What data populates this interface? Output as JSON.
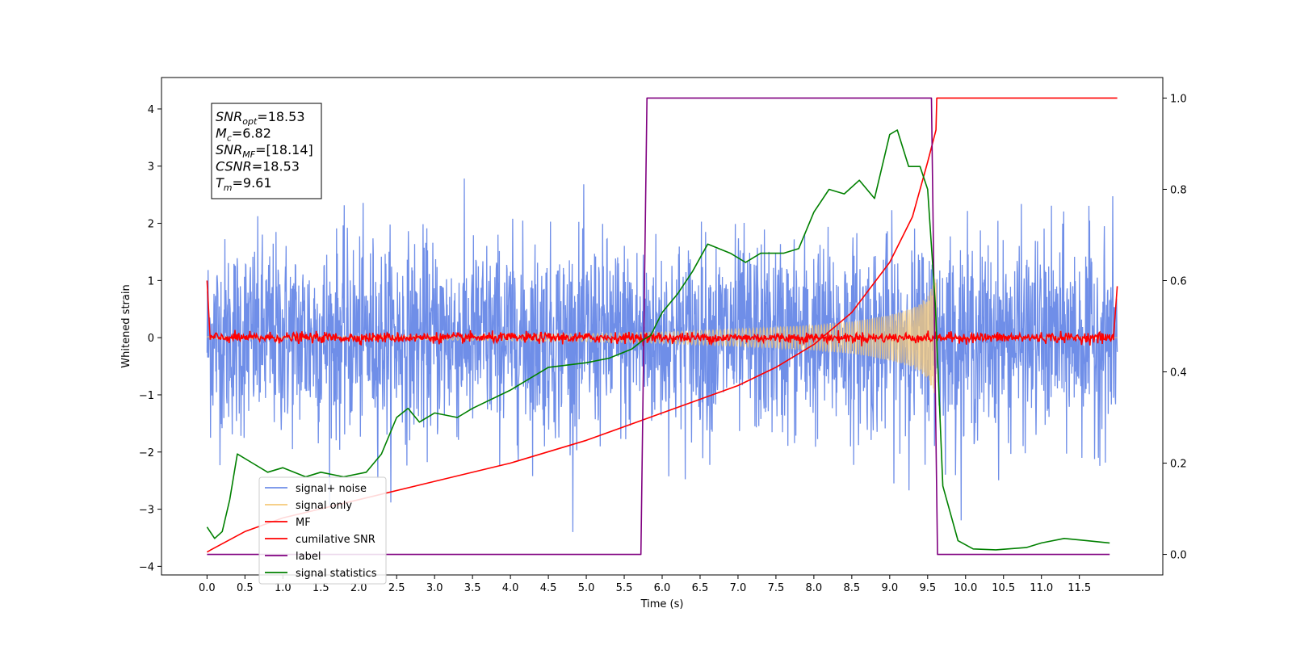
{
  "chart_data": {
    "type": "line",
    "xlabel": "Time (s)",
    "ylabel_left": "Whitened strain",
    "xlim": [
      -0.6,
      12.6
    ],
    "ylim_left": [
      -4.15,
      4.55
    ],
    "ylim_right": [
      -0.045,
      1.045
    ],
    "x_ticks": [
      "0.0",
      "0.5",
      "1.0",
      "1.5",
      "2.0",
      "2.5",
      "3.0",
      "3.5",
      "4.0",
      "4.5",
      "5.0",
      "5.5",
      "6.0",
      "6.5",
      "7.0",
      "7.5",
      "8.0",
      "8.5",
      "9.0",
      "9.5",
      "10.0",
      "10.5",
      "11.0",
      "11.5"
    ],
    "y_ticks_left": [
      "4",
      "3",
      "2",
      "1",
      "0",
      "−1",
      "−2",
      "−3",
      "−4"
    ],
    "y_ticks_right": [
      "1.0",
      "0.8",
      "0.6",
      "0.4",
      "0.2",
      "0.0"
    ],
    "grid": false,
    "legend_position": "lower-left",
    "annotation_box": {
      "lines": [
        {
          "sym": "SNR",
          "sub": "opt",
          "val": "=18.53"
        },
        {
          "sym": "M",
          "sub": "c",
          "val": "=6.82"
        },
        {
          "sym": "SNR",
          "sub": "MF",
          "val": "=[18.14]"
        },
        {
          "sym": "CSNR",
          "sub": "",
          "val": "=18.53"
        },
        {
          "sym": "T",
          "sub": "m",
          "val": "=9.61"
        }
      ]
    },
    "series": [
      {
        "name": "signal+ noise",
        "color": "#6f8ee8",
        "axis": "left",
        "desc": "noise amplitude approx ±2 std 0.8"
      },
      {
        "name": "signal only",
        "color": "#f5c97a",
        "axis": "left",
        "envelope_x": [
          0.0,
          3.0,
          5.0,
          6.0,
          7.0,
          8.0,
          8.5,
          9.0,
          9.3,
          9.5,
          9.6,
          9.61
        ],
        "envelope_y": [
          0.02,
          0.04,
          0.07,
          0.1,
          0.15,
          0.22,
          0.28,
          0.4,
          0.52,
          0.72,
          1.05,
          1.1
        ]
      },
      {
        "name": "MF",
        "color": "#ff0000",
        "axis": "left",
        "desc": "matched filter output near 0, noise approx ±0.1"
      },
      {
        "name": "cumilative SNR",
        "color": "#ff0000",
        "axis": "right",
        "x": [
          0.0,
          0.05,
          0.5,
          1.0,
          2.0,
          3.0,
          4.0,
          5.0,
          6.0,
          7.0,
          7.5,
          8.0,
          8.5,
          9.0,
          9.3,
          9.5,
          9.61,
          9.62,
          12.0
        ],
        "y": [
          0.005,
          0.01,
          0.05,
          0.08,
          0.12,
          0.16,
          0.2,
          0.25,
          0.31,
          0.37,
          0.41,
          0.46,
          0.53,
          0.64,
          0.74,
          0.86,
          0.93,
          1.0,
          1.0
        ]
      },
      {
        "name": "label",
        "color": "#800080",
        "axis": "right",
        "x": [
          0.0,
          5.72,
          5.8,
          9.55,
          9.63,
          11.9
        ],
        "y": [
          0.0,
          0.0,
          1.0,
          1.0,
          0.0,
          0.0
        ]
      },
      {
        "name": "signal statistics",
        "color": "#008000",
        "axis": "right",
        "x": [
          0.0,
          0.1,
          0.2,
          0.3,
          0.4,
          0.6,
          0.8,
          1.0,
          1.3,
          1.5,
          1.8,
          2.1,
          2.3,
          2.5,
          2.65,
          2.8,
          3.0,
          3.3,
          3.5,
          4.0,
          4.5,
          5.0,
          5.3,
          5.6,
          5.75,
          5.85,
          6.0,
          6.2,
          6.4,
          6.6,
          6.9,
          7.1,
          7.3,
          7.6,
          7.8,
          8.0,
          8.2,
          8.4,
          8.6,
          8.8,
          9.0,
          9.1,
          9.25,
          9.4,
          9.5,
          9.6,
          9.7,
          9.9,
          10.1,
          10.4,
          10.8,
          11.0,
          11.3,
          11.6,
          11.9
        ],
        "y": [
          0.06,
          0.035,
          0.05,
          0.12,
          0.22,
          0.2,
          0.18,
          0.19,
          0.17,
          0.18,
          0.17,
          0.18,
          0.22,
          0.3,
          0.32,
          0.29,
          0.31,
          0.3,
          0.32,
          0.36,
          0.41,
          0.42,
          0.43,
          0.45,
          0.47,
          0.48,
          0.53,
          0.57,
          0.62,
          0.68,
          0.66,
          0.64,
          0.66,
          0.66,
          0.67,
          0.75,
          0.8,
          0.79,
          0.82,
          0.78,
          0.92,
          0.93,
          0.85,
          0.85,
          0.8,
          0.55,
          0.15,
          0.03,
          0.012,
          0.01,
          0.015,
          0.025,
          0.035,
          0.03,
          0.025
        ]
      }
    ]
  }
}
